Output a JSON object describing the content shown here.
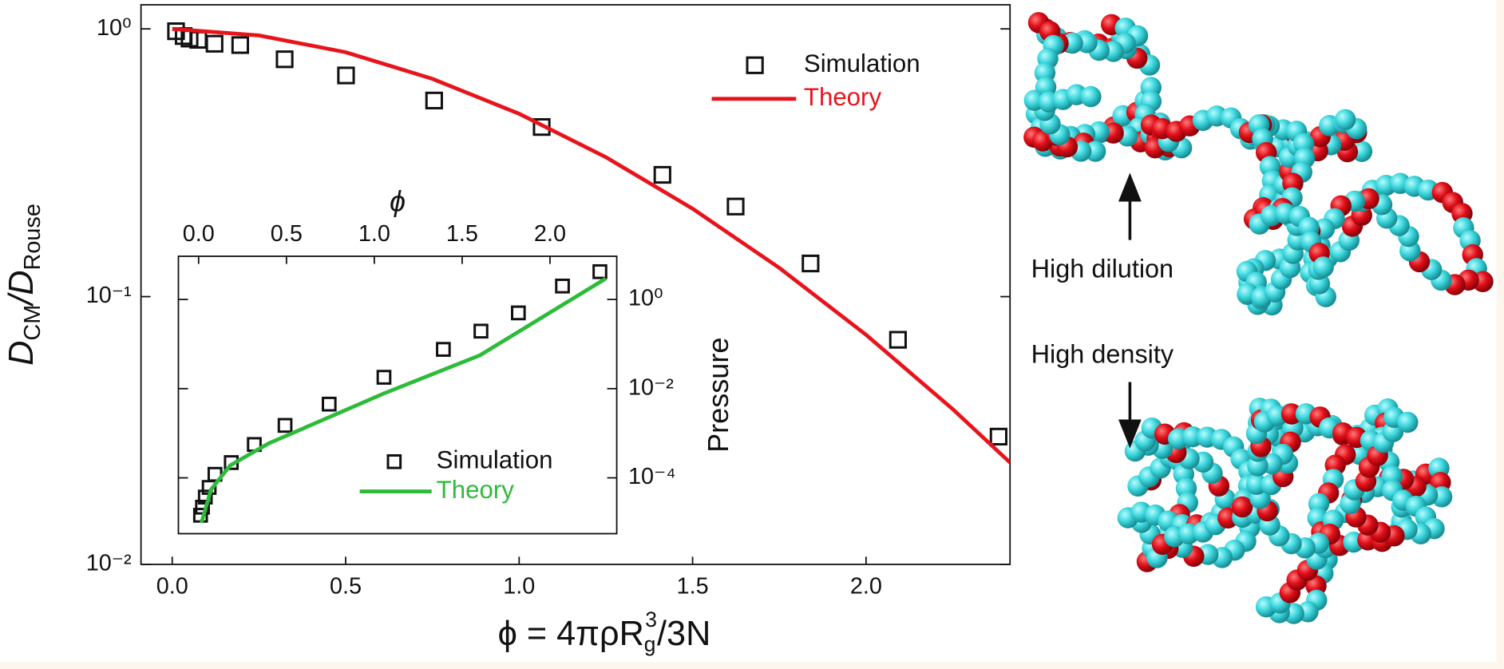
{
  "chart_data": [
    {
      "type": "scatter",
      "log_y": true,
      "y_label": [
        "D",
        "CM",
        "/D",
        "Rouse"
      ],
      "x_label": [
        "ϕ = 4πρR",
        "g",
        "3",
        "/3N"
      ],
      "xlim": [
        -0.09,
        2.415
      ],
      "xticks": [
        {
          "value": 0,
          "label": "0.0"
        },
        0.5,
        {
          "value": 1,
          "label": "1.0"
        },
        1.5,
        {
          "value": 2,
          "label": "2.0"
        }
      ],
      "ylim": [
        0.01,
        1.23
      ],
      "yticks": [
        {
          "value": 1,
          "label": "10⁰"
        },
        {
          "value": 0.1,
          "label": "10⁻¹"
        },
        {
          "value": 0.01,
          "label": "10⁻²"
        }
      ],
      "series": [
        {
          "name": "Simulation",
          "color": "#111111",
          "marker": "square",
          "x": [
            0.011,
            0.033,
            0.05,
            0.075,
            0.122,
            0.196,
            0.324,
            0.501,
            0.755,
            1.065,
            1.413,
            1.624,
            1.84,
            2.092,
            2.382
          ],
          "values": [
            0.98,
            0.94,
            0.92,
            0.91,
            0.88,
            0.87,
            0.77,
            0.67,
            0.54,
            0.43,
            0.285,
            0.217,
            0.133,
            0.069,
            0.03
          ]
        },
        {
          "name": "Theory",
          "color": "#e8141c",
          "marker": "line",
          "x": [
            0,
            0.25,
            0.5,
            0.75,
            1.0,
            1.25,
            1.5,
            1.75,
            2.0,
            2.25,
            2.415
          ],
          "values": [
            1.0,
            0.945,
            0.818,
            0.651,
            0.482,
            0.332,
            0.213,
            0.128,
            0.072,
            0.038,
            0.024
          ]
        }
      ]
    },
    {
      "type": "scatter",
      "log_y": true,
      "x_axis_position": "top",
      "y_axis_position": "right",
      "x_label": "ϕ",
      "y_label": "Pressure",
      "xlim": [
        -0.115,
        2.38
      ],
      "xticks": [
        {
          "value": 0,
          "label": "0.0"
        },
        0.5,
        {
          "value": 1,
          "label": "1.0"
        },
        1.5,
        {
          "value": 2,
          "label": "2.0"
        }
      ],
      "ylim": [
        5.6e-06,
        9.3
      ],
      "yticks": [
        {
          "value": 1,
          "label": "10⁰"
        },
        {
          "value": 0.01,
          "label": "10⁻²"
        },
        {
          "value": 0.0001,
          "label": "10⁻⁴"
        }
      ],
      "series": [
        {
          "name": "Simulation",
          "color": "#111111",
          "marker": "square",
          "x": [
            0.011,
            0.022,
            0.038,
            0.06,
            0.093,
            0.186,
            0.317,
            0.492,
            0.743,
            1.055,
            1.393,
            1.607,
            1.82,
            2.071,
            2.284
          ],
          "values": [
            1.45e-05,
            2.2e-05,
            3.7e-05,
            6.1e-05,
            0.00012,
            0.00022,
            0.00056,
            0.0015,
            0.0045,
            0.018,
            0.076,
            0.195,
            0.5,
            2.0,
            4.2
          ]
        },
        {
          "name": "Theory",
          "color": "#2dbb3a",
          "marker": "line",
          "x": [
            0.016,
            0.071,
            0.18,
            0.399,
            1.055,
            1.601,
            2.317
          ],
          "values": [
            9.8e-06,
            5.5e-05,
            0.00019,
            0.00059,
            0.0078,
            0.056,
            2.95
          ]
        }
      ]
    }
  ],
  "illustration": {
    "labels": [
      "High dilution",
      "High density"
    ]
  }
}
